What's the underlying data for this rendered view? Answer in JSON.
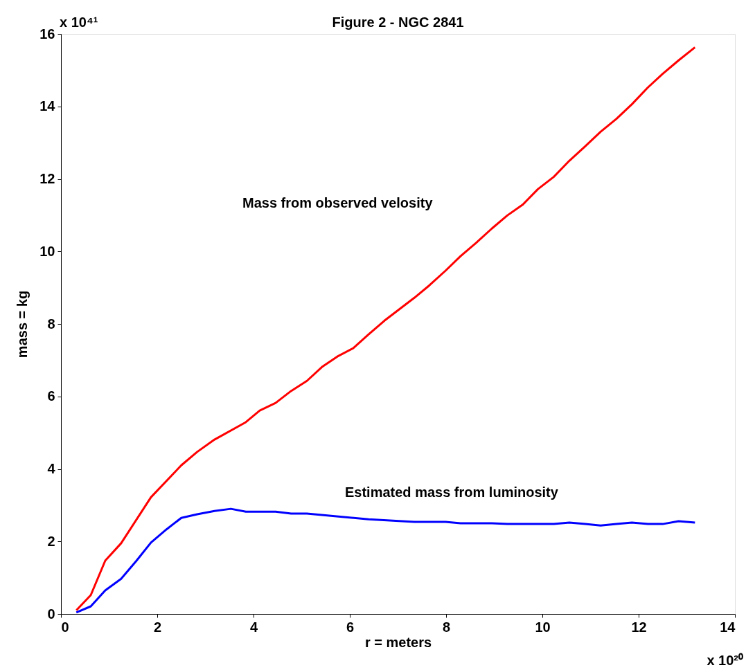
{
  "chart_data": {
    "type": "line",
    "title": "Figure 2 - NGC 2841",
    "xlabel": "r = meters",
    "ylabel": "mass = kg",
    "xlim": [
      0,
      14
    ],
    "xticks": [
      0,
      2,
      4,
      6,
      8,
      10,
      12,
      14
    ],
    "ylim": [
      0,
      16
    ],
    "yticks": [
      0,
      2,
      4,
      6,
      8,
      10,
      12,
      14,
      16
    ],
    "grid": false,
    "line_style": "solid",
    "marker": "none",
    "series": [
      {
        "color": "#ff0000",
        "x": [
          0.32,
          0.62,
          0.92,
          1.25,
          1.87,
          2.5,
          2.83,
          3.19,
          3.84,
          4.13,
          4.46,
          4.78,
          5.11,
          5.42,
          5.74,
          6.07,
          6.39,
          6.72,
          7.34,
          7.65,
          7.99,
          8.3,
          8.62,
          8.95,
          9.27,
          9.6,
          9.91,
          10.24,
          10.56,
          10.89,
          11.21,
          11.54,
          11.86,
          12.19,
          12.5,
          12.83,
          13.17
        ],
        "values": [
          0.1,
          0.52,
          1.47,
          1.95,
          3.22,
          4.1,
          4.47,
          4.81,
          5.29,
          5.61,
          5.82,
          6.15,
          6.43,
          6.81,
          7.1,
          7.33,
          7.71,
          8.09,
          8.72,
          9.06,
          9.47,
          9.87,
          10.23,
          10.63,
          10.99,
          11.3,
          11.72,
          12.06,
          12.5,
          12.9,
          13.3,
          13.66,
          14.06,
          14.52,
          14.9,
          15.27,
          15.63
        ]
      },
      {
        "color": "#0000ff",
        "x": [
          0.32,
          0.62,
          0.92,
          1.25,
          1.57,
          1.87,
          2.19,
          2.5,
          2.83,
          3.19,
          3.53,
          3.84,
          4.46,
          4.78,
          5.11,
          6.39,
          7.34,
          7.99,
          8.3,
          8.95,
          9.27,
          10.24,
          10.56,
          10.89,
          11.21,
          11.54,
          11.86,
          12.19,
          12.5,
          12.83,
          13.17
        ],
        "values": [
          0.04,
          0.21,
          0.65,
          0.97,
          1.47,
          1.97,
          2.33,
          2.65,
          2.75,
          2.84,
          2.9,
          2.82,
          2.82,
          2.77,
          2.77,
          2.61,
          2.54,
          2.54,
          2.5,
          2.5,
          2.48,
          2.48,
          2.52,
          2.48,
          2.44,
          2.48,
          2.52,
          2.48,
          2.48,
          2.56,
          2.52
        ]
      }
    ],
    "annotations": [
      "Mass from observed velosity",
      "Estimated mass from luminosity",
      "x 10⁴¹",
      "x 10²⁰"
    ]
  }
}
